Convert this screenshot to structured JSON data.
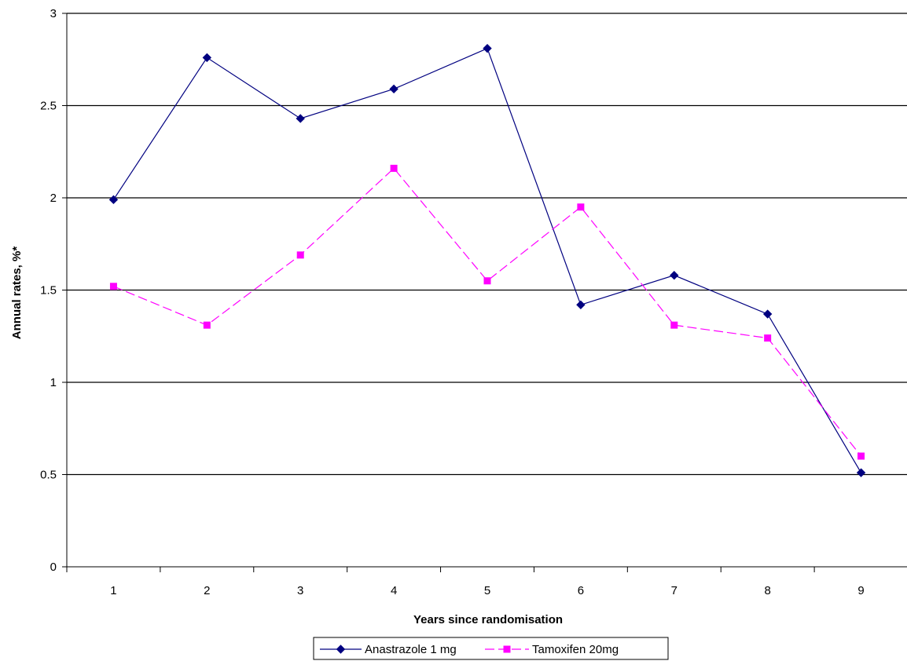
{
  "chart_data": {
    "type": "line",
    "title": "",
    "xlabel": "Years since randomisation",
    "ylabel": "Annual rates, %*",
    "categories": [
      "1",
      "2",
      "3",
      "4",
      "5",
      "6",
      "7",
      "8",
      "9"
    ],
    "ylim": [
      0,
      3
    ],
    "yticks": [
      "0",
      "0.5",
      "1",
      "1.5",
      "2",
      "2.5",
      "3"
    ],
    "grid": "horizontal",
    "legend_position": "bottom-center",
    "series": [
      {
        "name": "Anastrazole 1 mg",
        "color": "#000080",
        "marker": "diamond",
        "line_style": "solid",
        "values": [
          1.99,
          2.76,
          2.43,
          2.59,
          2.81,
          1.42,
          1.58,
          1.37,
          0.51
        ]
      },
      {
        "name": "Tamoxifen 20mg",
        "color": "#ff00ff",
        "marker": "square",
        "line_style": "dashed",
        "values": [
          1.52,
          1.31,
          1.69,
          2.16,
          1.55,
          1.95,
          1.31,
          1.24,
          0.6
        ]
      }
    ]
  }
}
